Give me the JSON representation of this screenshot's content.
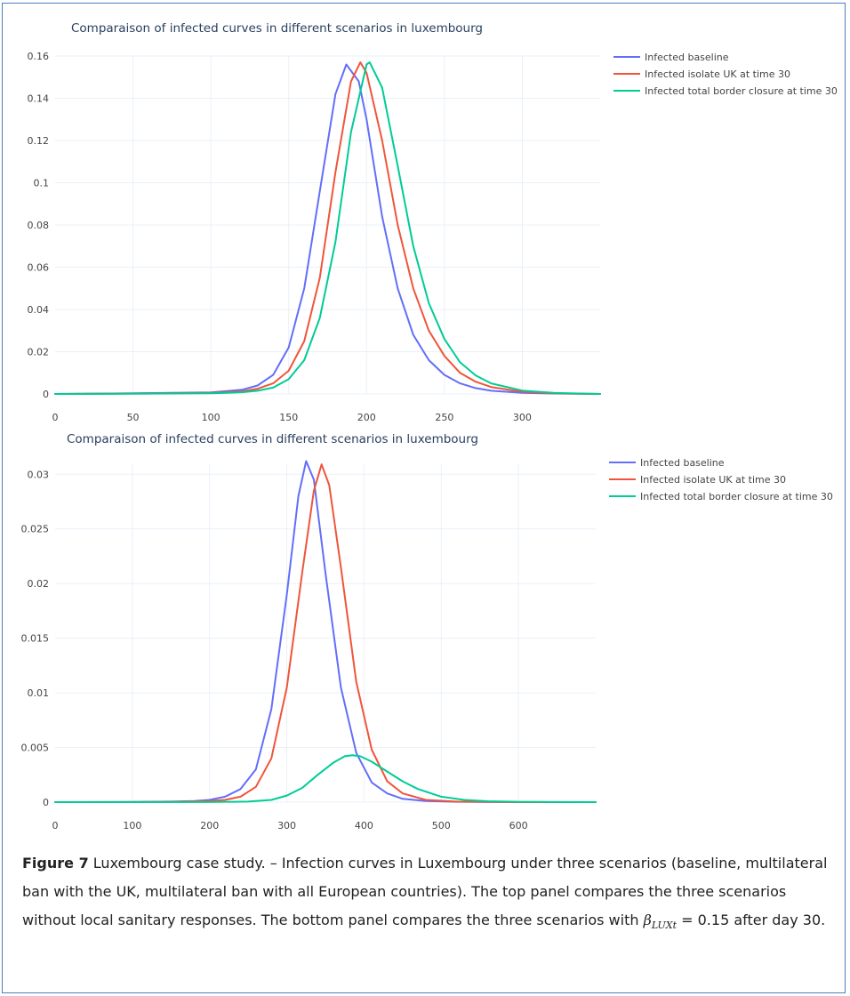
{
  "colors": {
    "baseline": "#636efa",
    "uk": "#ef553b",
    "closure": "#00cc96",
    "grid": "#ebf0f8",
    "axis_text": "#444444",
    "frame": "#4a7fc1"
  },
  "chart_data": [
    {
      "type": "line",
      "title": "Comparaison of infected curves in different scenarios in luxembourg",
      "xlabel": "",
      "ylabel": "",
      "xlim": [
        0,
        350
      ],
      "ylim": [
        0,
        0.16
      ],
      "xticks": [
        0,
        50,
        100,
        150,
        200,
        250,
        300
      ],
      "xtick_labels": [
        "0",
        "50",
        "100",
        "150",
        "200",
        "250",
        "300"
      ],
      "yticks": [
        0,
        0.02,
        0.04,
        0.06,
        0.08,
        0.1,
        0.12,
        0.14,
        0.16
      ],
      "ytick_labels": [
        "0",
        "0.02",
        "0.04",
        "0.06",
        "0.08",
        "0.1",
        "0.12",
        "0.14",
        "0.16"
      ],
      "grid": true,
      "legend": "top-right",
      "series": [
        {
          "name": "Infected baseline",
          "color": "#636efa",
          "x": [
            0,
            50,
            100,
            120,
            130,
            140,
            150,
            160,
            170,
            180,
            187,
            195,
            200,
            210,
            220,
            230,
            240,
            250,
            260,
            270,
            280,
            300,
            320,
            350
          ],
          "y": [
            0,
            0.0003,
            0.0007,
            0.002,
            0.004,
            0.009,
            0.022,
            0.05,
            0.096,
            0.142,
            0.156,
            0.148,
            0.13,
            0.084,
            0.05,
            0.028,
            0.016,
            0.009,
            0.005,
            0.0028,
            0.0015,
            0.0005,
            0.0002,
            0
          ]
        },
        {
          "name": "Infected isolate UK at time 30",
          "color": "#ef553b",
          "x": [
            0,
            50,
            100,
            120,
            130,
            140,
            150,
            160,
            170,
            180,
            190,
            196,
            200,
            210,
            220,
            230,
            240,
            250,
            260,
            270,
            280,
            300,
            320,
            350
          ],
          "y": [
            0,
            0.0002,
            0.0005,
            0.0012,
            0.0025,
            0.005,
            0.011,
            0.025,
            0.055,
            0.105,
            0.148,
            0.157,
            0.152,
            0.12,
            0.08,
            0.05,
            0.03,
            0.018,
            0.01,
            0.0058,
            0.0033,
            0.001,
            0.0003,
            0
          ]
        },
        {
          "name": "Infected total border closure at time 30",
          "color": "#00cc96",
          "x": [
            0,
            50,
            100,
            120,
            130,
            140,
            150,
            160,
            170,
            180,
            190,
            200,
            202,
            210,
            220,
            230,
            240,
            250,
            260,
            270,
            280,
            300,
            320,
            350
          ],
          "y": [
            0,
            0.0001,
            0.0003,
            0.0008,
            0.0015,
            0.003,
            0.007,
            0.016,
            0.036,
            0.072,
            0.124,
            0.156,
            0.157,
            0.145,
            0.108,
            0.07,
            0.043,
            0.026,
            0.015,
            0.0088,
            0.005,
            0.0016,
            0.0005,
            0
          ]
        }
      ]
    },
    {
      "type": "line",
      "title": "Comparaison of infected curves in different scenarios in luxembourg",
      "xlabel": "",
      "ylabel": "",
      "xlim": [
        0,
        700
      ],
      "ylim": [
        0,
        0.031
      ],
      "xticks": [
        0,
        100,
        200,
        300,
        400,
        500,
        600
      ],
      "xtick_labels": [
        "0",
        "100",
        "200",
        "300",
        "400",
        "500",
        "600"
      ],
      "yticks": [
        0,
        0.005,
        0.01,
        0.015,
        0.02,
        0.025,
        0.03
      ],
      "ytick_labels": [
        "0",
        "0.005",
        "0.01",
        "0.015",
        "0.02",
        "0.025",
        "0.03"
      ],
      "grid": true,
      "legend": "top-right",
      "series": [
        {
          "name": "Infected baseline",
          "color": "#636efa",
          "x": [
            0,
            100,
            150,
            180,
            200,
            220,
            240,
            260,
            280,
            300,
            315,
            325,
            335,
            350,
            370,
            390,
            410,
            430,
            450,
            480,
            520,
            600,
            700
          ],
          "y": [
            0,
            2e-05,
            5e-05,
            0.0001,
            0.0002,
            0.0005,
            0.0012,
            0.003,
            0.0085,
            0.019,
            0.028,
            0.0312,
            0.0295,
            0.021,
            0.0105,
            0.0045,
            0.0018,
            0.0008,
            0.0003,
            0.0001,
            3e-05,
            0,
            0
          ]
        },
        {
          "name": "Infected isolate UK at time 30",
          "color": "#ef553b",
          "x": [
            0,
            100,
            150,
            200,
            220,
            240,
            260,
            280,
            300,
            320,
            335,
            345,
            355,
            370,
            390,
            410,
            430,
            450,
            480,
            520,
            600,
            700
          ],
          "y": [
            0,
            1e-05,
            3e-05,
            0.0001,
            0.0002,
            0.0005,
            0.0014,
            0.004,
            0.0105,
            0.021,
            0.0285,
            0.0309,
            0.029,
            0.0215,
            0.011,
            0.0048,
            0.0019,
            0.0008,
            0.0002,
            5e-05,
            0,
            0
          ]
        },
        {
          "name": "Infected total border closure at time 30",
          "color": "#00cc96",
          "x": [
            0,
            100,
            200,
            250,
            280,
            300,
            320,
            340,
            360,
            375,
            385,
            395,
            410,
            430,
            450,
            470,
            500,
            530,
            560,
            600,
            650,
            700
          ],
          "y": [
            0,
            0,
            1e-05,
            5e-05,
            0.0002,
            0.0006,
            0.0013,
            0.0025,
            0.0036,
            0.0042,
            0.0043,
            0.0042,
            0.0037,
            0.0028,
            0.0019,
            0.0012,
            0.0005,
            0.0002,
            8e-05,
            3e-05,
            1e-05,
            0
          ]
        }
      ]
    }
  ],
  "caption": {
    "figure_label": "Figure 7",
    "text_before_math": " Luxembourg case study. – Infection curves in Luxembourg under three scenarios (baseline, multilateral ban with the UK, multilateral ban with all European countries). The top panel compares the three scenarios without local sanitary responses. The bottom panel compares the three scenarios with ",
    "math_symbol": "β",
    "math_subscript": "LUXt",
    "math_rest": " = 0.15",
    "text_after_math": " after day 30."
  }
}
